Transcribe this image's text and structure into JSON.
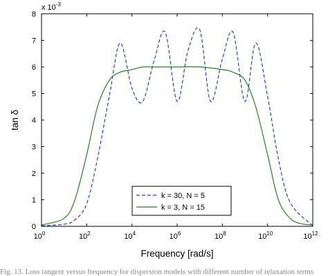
{
  "chart_data": {
    "type": "line",
    "xlabel": "Frequency [rad/s]",
    "ylabel": "tan δ",
    "x_scale": "log",
    "xlim": [
      1,
      1000000000000
    ],
    "ylim": [
      0,
      0.008
    ],
    "y_multiplier_label": "x 10",
    "y_multiplier_exponent": "-3",
    "x_ticks": [
      {
        "value": 1,
        "base": "10",
        "exp": "0"
      },
      {
        "value": 100,
        "base": "10",
        "exp": "2"
      },
      {
        "value": 10000,
        "base": "10",
        "exp": "4"
      },
      {
        "value": 1000000,
        "base": "10",
        "exp": "6"
      },
      {
        "value": 100000000,
        "base": "10",
        "exp": "8"
      },
      {
        "value": 10000000000,
        "base": "10",
        "exp": "10"
      },
      {
        "value": 1000000000000,
        "base": "10",
        "exp": "12"
      }
    ],
    "y_ticks": [
      {
        "value": 0,
        "label": "0"
      },
      {
        "value": 0.001,
        "label": "1"
      },
      {
        "value": 0.002,
        "label": "2"
      },
      {
        "value": 0.003,
        "label": "3"
      },
      {
        "value": 0.004,
        "label": "4"
      },
      {
        "value": 0.005,
        "label": "5"
      },
      {
        "value": 0.006,
        "label": "6"
      },
      {
        "value": 0.007,
        "label": "7"
      },
      {
        "value": 0.008,
        "label": "8"
      }
    ],
    "grid": false,
    "legend_position": "lower-center",
    "series": [
      {
        "name": "k = 30, N = 5",
        "color": "#1f3fd8",
        "style": "dashed",
        "x": [
          1,
          10,
          30,
          100,
          300,
          1000,
          3000,
          10000,
          30000,
          100000,
          300000,
          1000000,
          3000000,
          10000000,
          30000000,
          100000000,
          300000000,
          1000000000,
          3000000000,
          10000000000,
          30000000000,
          100000000000,
          1000000000000
        ],
        "y": [
          2e-05,
          8e-05,
          0.00024,
          0.00085,
          0.00255,
          0.0049,
          0.0069,
          0.0052,
          0.0047,
          0.0063,
          0.0073,
          0.0047,
          0.0066,
          0.0074,
          0.0047,
          0.0063,
          0.0073,
          0.0047,
          0.0069,
          0.0049,
          0.00255,
          0.0009,
          2e-05
        ]
      },
      {
        "name": "k = 3, N = 15",
        "color": "#1a8a1a",
        "style": "solid",
        "x": [
          1,
          10,
          30,
          100,
          300,
          1000,
          3000,
          10000,
          30000,
          100000,
          1000000,
          10000000,
          100000000,
          300000000,
          1000000000,
          3000000000,
          10000000000,
          30000000000,
          100000000000,
          300000000000,
          1000000000000
        ],
        "y": [
          5e-05,
          0.0003,
          0.001,
          0.0027,
          0.0045,
          0.0055,
          0.0058,
          0.0059,
          0.006,
          0.006,
          0.006,
          0.006,
          0.0059,
          0.0058,
          0.0055,
          0.0045,
          0.0027,
          0.001,
          0.0003,
          0.0001,
          5e-05
        ]
      }
    ]
  },
  "caption": "Fig. 13.  Loss tangent versus frequency for dispersion models with different number of relaxation terms"
}
